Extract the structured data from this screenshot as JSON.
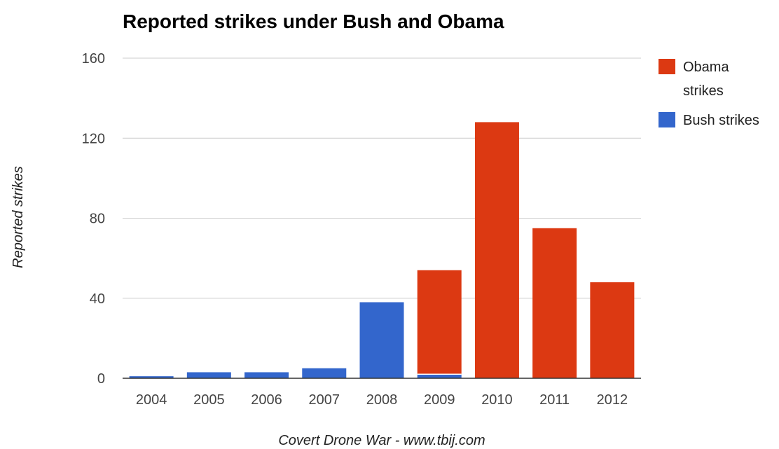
{
  "chart_data": {
    "type": "bar",
    "stacked": true,
    "title": "Reported strikes under Bush and Obama",
    "xlabel": "Covert Drone War - www.tbij.com",
    "ylabel": "Reported strikes",
    "ylim": [
      0,
      160
    ],
    "yticks": [
      0,
      40,
      80,
      120,
      160
    ],
    "grid": true,
    "legend_position": "right",
    "categories": [
      "2004",
      "2005",
      "2006",
      "2007",
      "2008",
      "2009",
      "2010",
      "2011",
      "2012"
    ],
    "series": [
      {
        "name": "Bush strikes",
        "color": "#3366cc",
        "values": [
          1,
          3,
          3,
          5,
          38,
          2,
          0,
          0,
          0
        ]
      },
      {
        "name": "Obama strikes",
        "color": "#dc3912",
        "values": [
          0,
          0,
          0,
          0,
          0,
          52,
          128,
          75,
          48
        ]
      }
    ],
    "legend": [
      {
        "label_lines": [
          "Obama",
          "strikes"
        ],
        "color": "#dc3912"
      },
      {
        "label_lines": [
          "Bush strikes"
        ],
        "color": "#3366cc"
      }
    ]
  }
}
